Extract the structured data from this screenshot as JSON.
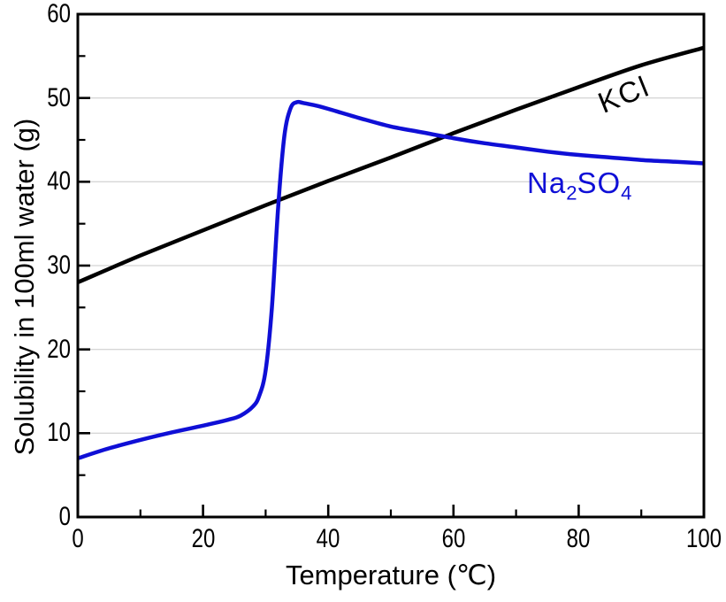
{
  "chart_data": {
    "type": "line",
    "title": "",
    "xlabel": "Temperature (℃)",
    "ylabel": "Solubility in 100ml water (g)",
    "xlim": [
      0,
      100
    ],
    "ylim": [
      0,
      60
    ],
    "x_major_ticks": [
      0,
      20,
      40,
      60,
      80,
      100
    ],
    "x_minor_ticks": [
      10,
      30,
      50,
      70,
      90
    ],
    "y_major_ticks": [
      0,
      10,
      20,
      30,
      40,
      50,
      60
    ],
    "y_minor_ticks": [
      5,
      15,
      25,
      35,
      45,
      55
    ],
    "gridlines_y": [
      10,
      20,
      30,
      40,
      50
    ],
    "grid": "horizontal-only",
    "grid_color": "#c8c8c8",
    "axis_color": "#000000",
    "background": "#ffffff",
    "legend_position": "labels-on-curves",
    "series": [
      {
        "name": "KCl",
        "label": "KCl",
        "color": "#000000",
        "x": [
          0,
          10,
          20,
          30,
          40,
          50,
          60,
          70,
          80,
          90,
          100
        ],
        "y": [
          28,
          31.2,
          34.2,
          37.2,
          40.1,
          42.9,
          45.8,
          48.6,
          51.3,
          53.9,
          56
        ]
      },
      {
        "name": "Na2SO4",
        "label_parts": [
          {
            "t": "Na"
          },
          {
            "t": "2",
            "sub": true
          },
          {
            "t": "SO"
          },
          {
            "t": "4",
            "sub": true
          }
        ],
        "color": "#0f0fd6",
        "x": [
          0,
          5,
          10,
          15,
          20,
          24,
          26,
          28,
          29,
          30,
          31,
          32,
          33,
          34,
          35,
          36,
          38,
          40,
          45,
          50,
          55,
          60,
          65,
          70,
          75,
          80,
          85,
          90,
          95,
          100
        ],
        "y": [
          7,
          8.2,
          9.2,
          10.1,
          10.9,
          11.6,
          12.1,
          13.2,
          14.5,
          17.5,
          25,
          37,
          45.5,
          48.8,
          49.5,
          49.4,
          49.1,
          48.7,
          47.6,
          46.6,
          45.9,
          45.2,
          44.6,
          44.1,
          43.6,
          43.2,
          42.9,
          42.6,
          42.4,
          42.2
        ]
      }
    ]
  }
}
